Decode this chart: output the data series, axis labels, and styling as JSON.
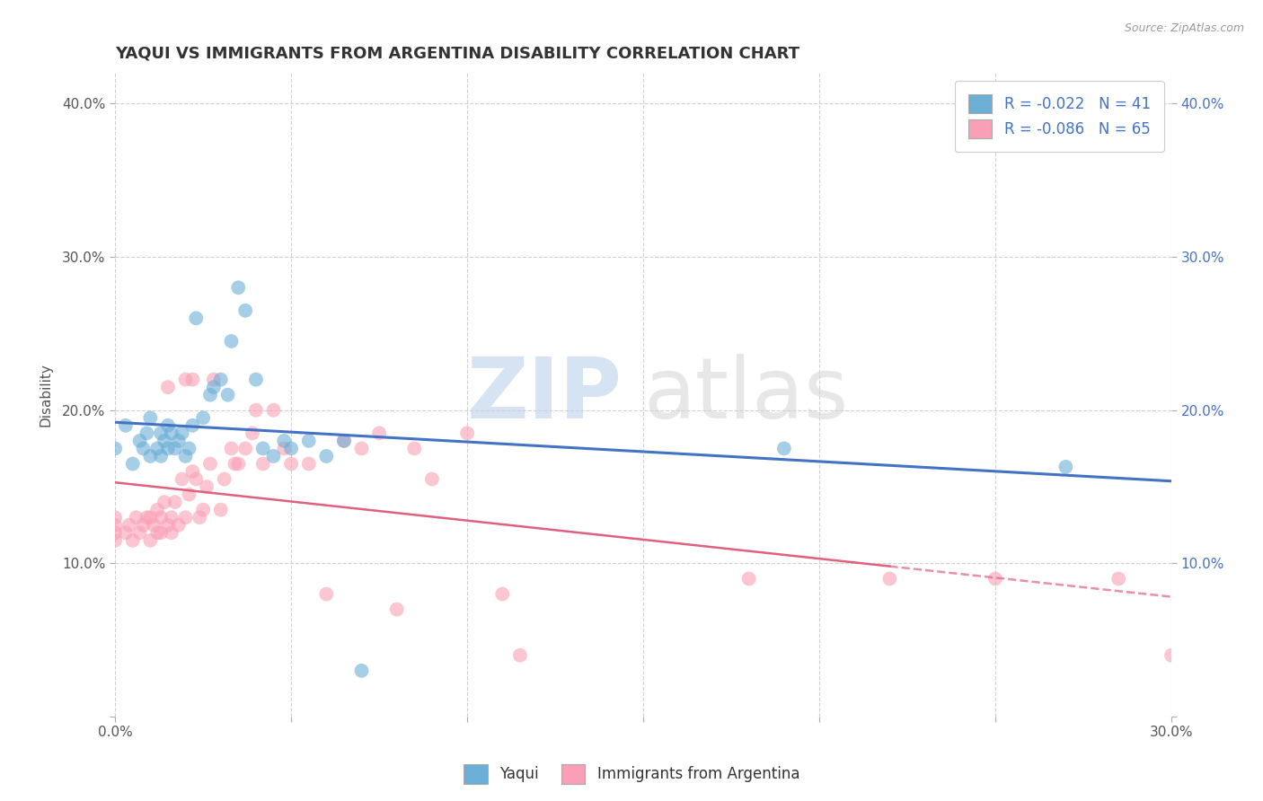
{
  "title": "YAQUI VS IMMIGRANTS FROM ARGENTINA DISABILITY CORRELATION CHART",
  "source": "Source: ZipAtlas.com",
  "ylabel": "Disability",
  "xlim": [
    0.0,
    0.3
  ],
  "ylim": [
    0.0,
    0.42
  ],
  "xticks": [
    0.0,
    0.05,
    0.1,
    0.15,
    0.2,
    0.25,
    0.3
  ],
  "xticklabels": [
    "0.0%",
    "",
    "",
    "",
    "",
    "",
    "30.0%"
  ],
  "yticks": [
    0.0,
    0.1,
    0.2,
    0.3,
    0.4
  ],
  "yticklabels_left": [
    "",
    "10.0%",
    "20.0%",
    "30.0%",
    "40.0%"
  ],
  "yticklabels_right": [
    "",
    "10.0%",
    "20.0%",
    "30.0%",
    "40.0%"
  ],
  "blue_R": -0.022,
  "blue_N": 41,
  "pink_R": -0.086,
  "pink_N": 65,
  "blue_label": "Yaqui",
  "pink_label": "Immigrants from Argentina",
  "blue_color": "#6baed6",
  "pink_color": "#fa9fb5",
  "blue_scatter_x": [
    0.0,
    0.003,
    0.005,
    0.007,
    0.008,
    0.009,
    0.01,
    0.01,
    0.012,
    0.013,
    0.013,
    0.014,
    0.015,
    0.015,
    0.016,
    0.017,
    0.018,
    0.019,
    0.02,
    0.021,
    0.022,
    0.023,
    0.025,
    0.027,
    0.028,
    0.03,
    0.032,
    0.033,
    0.035,
    0.037,
    0.04,
    0.042,
    0.045,
    0.048,
    0.05,
    0.055,
    0.06,
    0.065,
    0.07,
    0.19,
    0.27
  ],
  "blue_scatter_y": [
    0.175,
    0.19,
    0.165,
    0.18,
    0.175,
    0.185,
    0.17,
    0.195,
    0.175,
    0.185,
    0.17,
    0.18,
    0.175,
    0.19,
    0.185,
    0.175,
    0.18,
    0.185,
    0.17,
    0.175,
    0.19,
    0.26,
    0.195,
    0.21,
    0.215,
    0.22,
    0.21,
    0.245,
    0.28,
    0.265,
    0.22,
    0.175,
    0.17,
    0.18,
    0.175,
    0.18,
    0.17,
    0.18,
    0.03,
    0.175,
    0.163
  ],
  "pink_scatter_x": [
    0.0,
    0.0,
    0.0,
    0.0,
    0.003,
    0.004,
    0.005,
    0.006,
    0.007,
    0.008,
    0.009,
    0.01,
    0.01,
    0.011,
    0.012,
    0.012,
    0.013,
    0.013,
    0.014,
    0.015,
    0.015,
    0.016,
    0.016,
    0.017,
    0.018,
    0.019,
    0.02,
    0.02,
    0.021,
    0.022,
    0.022,
    0.023,
    0.024,
    0.025,
    0.026,
    0.027,
    0.028,
    0.03,
    0.031,
    0.033,
    0.034,
    0.035,
    0.037,
    0.039,
    0.04,
    0.042,
    0.045,
    0.048,
    0.05,
    0.055,
    0.06,
    0.065,
    0.07,
    0.075,
    0.08,
    0.085,
    0.09,
    0.1,
    0.11,
    0.115,
    0.18,
    0.22,
    0.25,
    0.285,
    0.3
  ],
  "pink_scatter_y": [
    0.12,
    0.13,
    0.115,
    0.125,
    0.12,
    0.125,
    0.115,
    0.13,
    0.12,
    0.125,
    0.13,
    0.115,
    0.13,
    0.125,
    0.12,
    0.135,
    0.13,
    0.12,
    0.14,
    0.125,
    0.215,
    0.13,
    0.12,
    0.14,
    0.125,
    0.155,
    0.22,
    0.13,
    0.145,
    0.16,
    0.22,
    0.155,
    0.13,
    0.135,
    0.15,
    0.165,
    0.22,
    0.135,
    0.155,
    0.175,
    0.165,
    0.165,
    0.175,
    0.185,
    0.2,
    0.165,
    0.2,
    0.175,
    0.165,
    0.165,
    0.08,
    0.18,
    0.175,
    0.185,
    0.07,
    0.175,
    0.155,
    0.185,
    0.08,
    0.04,
    0.09,
    0.09,
    0.09,
    0.09,
    0.04
  ],
  "watermark_zip": "ZIP",
  "watermark_atlas": "atlas",
  "background_color": "#ffffff",
  "grid_color": "#d0d0d0",
  "title_fontsize": 13,
  "axis_fontsize": 11,
  "tick_fontsize": 11,
  "legend_fontsize": 12,
  "right_ytick_color": "#4472c4",
  "left_ytick_color": "#555555",
  "xtick_color": "#555555"
}
